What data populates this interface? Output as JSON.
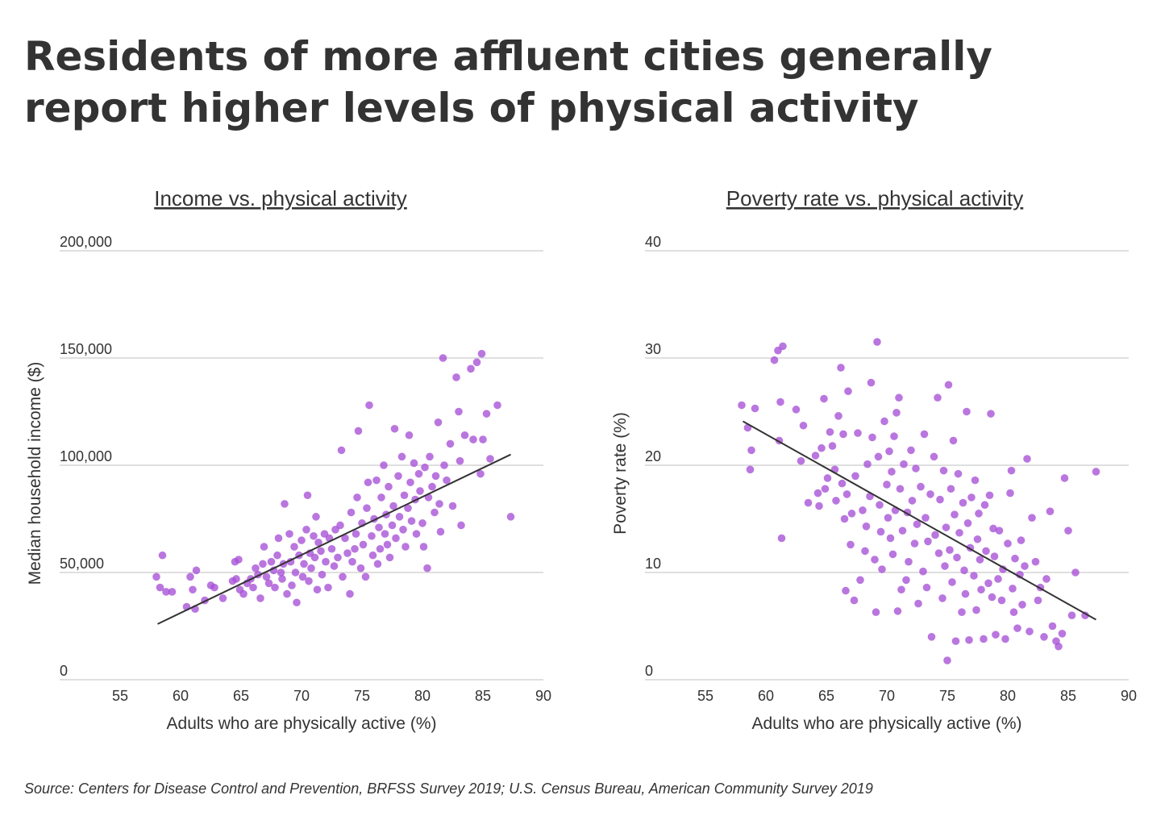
{
  "title": "Residents of more affluent cities generally report higher levels of physical activity",
  "source": "Source: Centers for Disease Control and Prevention, BRFSS Survey 2019; U.S. Census Bureau, American Community Survey 2019",
  "colors": {
    "point": "#A64FD6",
    "trend": "#333333",
    "grid": "#cccccc",
    "text": "#333333"
  },
  "chart_data": [
    {
      "type": "scatter",
      "title": "Income vs. physical activity",
      "xlabel": "Adults who are physically active (%)",
      "ylabel": "Median household income ($)",
      "xlim": [
        50,
        90
      ],
      "ylim": [
        0,
        200000
      ],
      "xticks": [
        55,
        60,
        65,
        70,
        75,
        80,
        85,
        90
      ],
      "yticks": [
        0,
        50000,
        100000,
        150000,
        200000
      ],
      "ytick_labels": [
        "0",
        "50,000",
        "100,000",
        "150,000",
        "200,000"
      ],
      "grid": "horizontal",
      "trendline": [
        [
          58.1,
          26000
        ],
        [
          87.3,
          105000
        ]
      ],
      "points": [
        [
          58.0,
          48000
        ],
        [
          58.3,
          43000
        ],
        [
          58.5,
          58000
        ],
        [
          58.8,
          41000
        ],
        [
          59.3,
          41000
        ],
        [
          60.5,
          34000
        ],
        [
          60.8,
          48000
        ],
        [
          61.0,
          42000
        ],
        [
          61.2,
          33000
        ],
        [
          61.3,
          51000
        ],
        [
          62.0,
          37000
        ],
        [
          62.5,
          44000
        ],
        [
          62.8,
          43000
        ],
        [
          63.5,
          38000
        ],
        [
          64.3,
          46000
        ],
        [
          64.5,
          55000
        ],
        [
          64.6,
          47000
        ],
        [
          64.8,
          56000
        ],
        [
          64.9,
          42000
        ],
        [
          65.2,
          40000
        ],
        [
          65.5,
          45000
        ],
        [
          65.8,
          47000
        ],
        [
          66.0,
          43000
        ],
        [
          66.2,
          52000
        ],
        [
          66.4,
          49000
        ],
        [
          66.6,
          38000
        ],
        [
          66.8,
          54000
        ],
        [
          66.9,
          62000
        ],
        [
          67.1,
          48000
        ],
        [
          67.3,
          45000
        ],
        [
          67.5,
          55000
        ],
        [
          67.7,
          51000
        ],
        [
          67.8,
          43000
        ],
        [
          68.0,
          58000
        ],
        [
          68.1,
          66000
        ],
        [
          68.3,
          50000
        ],
        [
          68.4,
          47000
        ],
        [
          68.5,
          54000
        ],
        [
          68.6,
          82000
        ],
        [
          68.8,
          40000
        ],
        [
          69.0,
          68000
        ],
        [
          69.1,
          55000
        ],
        [
          69.2,
          44000
        ],
        [
          69.4,
          62000
        ],
        [
          69.5,
          50000
        ],
        [
          69.6,
          36000
        ],
        [
          69.8,
          58000
        ],
        [
          70.0,
          65000
        ],
        [
          70.1,
          48000
        ],
        [
          70.2,
          54000
        ],
        [
          70.4,
          70000
        ],
        [
          70.5,
          86000
        ],
        [
          70.6,
          46000
        ],
        [
          70.7,
          59000
        ],
        [
          70.8,
          52000
        ],
        [
          71.0,
          67000
        ],
        [
          71.1,
          57000
        ],
        [
          71.2,
          76000
        ],
        [
          71.3,
          42000
        ],
        [
          71.4,
          64000
        ],
        [
          71.6,
          60000
        ],
        [
          71.7,
          49000
        ],
        [
          71.9,
          68000
        ],
        [
          72.0,
          55000
        ],
        [
          72.2,
          43000
        ],
        [
          72.3,
          66000
        ],
        [
          72.5,
          61000
        ],
        [
          72.7,
          53000
        ],
        [
          72.8,
          70000
        ],
        [
          73.0,
          57000
        ],
        [
          73.2,
          72000
        ],
        [
          73.3,
          107000
        ],
        [
          73.4,
          48000
        ],
        [
          73.6,
          66000
        ],
        [
          73.8,
          59000
        ],
        [
          74.0,
          40000
        ],
        [
          74.1,
          78000
        ],
        [
          74.2,
          55000
        ],
        [
          74.4,
          61000
        ],
        [
          74.5,
          68000
        ],
        [
          74.6,
          85000
        ],
        [
          74.7,
          116000
        ],
        [
          74.9,
          52000
        ],
        [
          75.0,
          73000
        ],
        [
          75.1,
          63000
        ],
        [
          75.3,
          48000
        ],
        [
          75.4,
          80000
        ],
        [
          75.5,
          92000
        ],
        [
          75.6,
          128000
        ],
        [
          75.8,
          67000
        ],
        [
          75.9,
          58000
        ],
        [
          76.0,
          75000
        ],
        [
          76.2,
          93000
        ],
        [
          76.3,
          54000
        ],
        [
          76.4,
          71000
        ],
        [
          76.5,
          61000
        ],
        [
          76.6,
          85000
        ],
        [
          76.8,
          100000
        ],
        [
          76.9,
          68000
        ],
        [
          77.0,
          77000
        ],
        [
          77.1,
          63000
        ],
        [
          77.2,
          90000
        ],
        [
          77.3,
          57000
        ],
        [
          77.5,
          72000
        ],
        [
          77.6,
          81000
        ],
        [
          77.7,
          117000
        ],
        [
          77.8,
          66000
        ],
        [
          78.0,
          95000
        ],
        [
          78.1,
          76000
        ],
        [
          78.3,
          104000
        ],
        [
          78.4,
          70000
        ],
        [
          78.5,
          86000
        ],
        [
          78.6,
          62000
        ],
        [
          78.8,
          80000
        ],
        [
          78.9,
          114000
        ],
        [
          79.0,
          92000
        ],
        [
          79.1,
          74000
        ],
        [
          79.3,
          101000
        ],
        [
          79.4,
          84000
        ],
        [
          79.5,
          68000
        ],
        [
          79.7,
          96000
        ],
        [
          79.8,
          88000
        ],
        [
          80.0,
          73000
        ],
        [
          80.1,
          62000
        ],
        [
          80.2,
          99000
        ],
        [
          80.4,
          52000
        ],
        [
          80.5,
          85000
        ],
        [
          80.6,
          104000
        ],
        [
          80.8,
          90000
        ],
        [
          81.0,
          78000
        ],
        [
          81.1,
          95000
        ],
        [
          81.3,
          120000
        ],
        [
          81.4,
          82000
        ],
        [
          81.5,
          69000
        ],
        [
          81.7,
          150000
        ],
        [
          81.8,
          100000
        ],
        [
          82.0,
          93000
        ],
        [
          82.3,
          110000
        ],
        [
          82.5,
          81000
        ],
        [
          82.8,
          141000
        ],
        [
          83.0,
          125000
        ],
        [
          83.1,
          102000
        ],
        [
          83.2,
          72000
        ],
        [
          83.5,
          114000
        ],
        [
          84.0,
          145000
        ],
        [
          84.2,
          112000
        ],
        [
          84.5,
          148000
        ],
        [
          84.8,
          96000
        ],
        [
          84.9,
          152000
        ],
        [
          85.0,
          112000
        ],
        [
          85.3,
          124000
        ],
        [
          85.6,
          103000
        ],
        [
          86.2,
          128000
        ],
        [
          87.3,
          76000
        ]
      ]
    },
    {
      "type": "scatter",
      "title": "Poverty rate vs. physical activity",
      "xlabel": "Adults who are physically active (%)",
      "ylabel": "Poverty rate (%)",
      "xlim": [
        50,
        90
      ],
      "ylim": [
        0,
        40
      ],
      "xticks": [
        55,
        60,
        65,
        70,
        75,
        80,
        85,
        90
      ],
      "yticks": [
        0,
        10,
        20,
        30,
        40
      ],
      "ytick_labels": [
        "0",
        "10",
        "20",
        "30",
        "40"
      ],
      "grid": "horizontal",
      "trendline": [
        [
          58.1,
          24.1
        ],
        [
          87.3,
          5.6
        ]
      ],
      "points": [
        [
          58.0,
          25.6
        ],
        [
          58.5,
          23.5
        ],
        [
          58.7,
          19.6
        ],
        [
          58.8,
          21.4
        ],
        [
          59.1,
          25.3
        ],
        [
          60.7,
          29.8
        ],
        [
          61.0,
          30.7
        ],
        [
          61.1,
          22.3
        ],
        [
          61.2,
          25.9
        ],
        [
          61.3,
          13.2
        ],
        [
          61.4,
          31.1
        ],
        [
          62.5,
          25.2
        ],
        [
          62.9,
          20.4
        ],
        [
          63.1,
          23.7
        ],
        [
          63.5,
          16.5
        ],
        [
          64.1,
          20.9
        ],
        [
          64.3,
          17.4
        ],
        [
          64.4,
          16.2
        ],
        [
          64.6,
          21.6
        ],
        [
          64.8,
          26.2
        ],
        [
          64.9,
          17.8
        ],
        [
          65.1,
          18.8
        ],
        [
          65.3,
          23.1
        ],
        [
          65.5,
          21.8
        ],
        [
          65.7,
          19.6
        ],
        [
          65.8,
          16.7
        ],
        [
          66.0,
          24.6
        ],
        [
          66.2,
          29.1
        ],
        [
          66.3,
          18.3
        ],
        [
          66.4,
          22.9
        ],
        [
          66.5,
          15.0
        ],
        [
          66.6,
          8.3
        ],
        [
          66.7,
          17.3
        ],
        [
          66.8,
          26.9
        ],
        [
          67.0,
          12.6
        ],
        [
          67.1,
          15.5
        ],
        [
          67.3,
          7.4
        ],
        [
          67.4,
          19.0
        ],
        [
          67.6,
          23.0
        ],
        [
          67.8,
          9.3
        ],
        [
          68.0,
          15.8
        ],
        [
          68.2,
          12.0
        ],
        [
          68.3,
          14.3
        ],
        [
          68.4,
          20.1
        ],
        [
          68.6,
          17.1
        ],
        [
          68.7,
          27.7
        ],
        [
          68.8,
          22.6
        ],
        [
          69.0,
          11.2
        ],
        [
          69.1,
          6.3
        ],
        [
          69.2,
          31.5
        ],
        [
          69.3,
          20.8
        ],
        [
          69.4,
          16.3
        ],
        [
          69.5,
          13.8
        ],
        [
          69.6,
          10.3
        ],
        [
          69.8,
          24.1
        ],
        [
          70.0,
          18.2
        ],
        [
          70.1,
          15.1
        ],
        [
          70.2,
          21.3
        ],
        [
          70.3,
          13.2
        ],
        [
          70.4,
          19.4
        ],
        [
          70.5,
          11.7
        ],
        [
          70.6,
          22.7
        ],
        [
          70.7,
          15.8
        ],
        [
          70.8,
          24.9
        ],
        [
          70.9,
          6.4
        ],
        [
          71.0,
          26.3
        ],
        [
          71.1,
          17.8
        ],
        [
          71.2,
          8.4
        ],
        [
          71.3,
          13.9
        ],
        [
          71.4,
          20.1
        ],
        [
          71.6,
          9.3
        ],
        [
          71.7,
          15.6
        ],
        [
          71.8,
          11.0
        ],
        [
          72.0,
          21.4
        ],
        [
          72.1,
          16.7
        ],
        [
          72.3,
          12.7
        ],
        [
          72.4,
          19.7
        ],
        [
          72.5,
          14.5
        ],
        [
          72.6,
          7.1
        ],
        [
          72.8,
          18.0
        ],
        [
          73.0,
          10.1
        ],
        [
          73.1,
          22.9
        ],
        [
          73.2,
          15.1
        ],
        [
          73.3,
          8.6
        ],
        [
          73.4,
          12.9
        ],
        [
          73.6,
          17.3
        ],
        [
          73.7,
          4.0
        ],
        [
          73.9,
          20.8
        ],
        [
          74.0,
          13.5
        ],
        [
          74.2,
          26.3
        ],
        [
          74.3,
          11.8
        ],
        [
          74.4,
          16.8
        ],
        [
          74.6,
          7.6
        ],
        [
          74.7,
          19.5
        ],
        [
          74.8,
          10.6
        ],
        [
          74.9,
          14.2
        ],
        [
          75.0,
          1.8
        ],
        [
          75.1,
          27.5
        ],
        [
          75.2,
          12.1
        ],
        [
          75.3,
          17.8
        ],
        [
          75.4,
          9.1
        ],
        [
          75.5,
          22.3
        ],
        [
          75.6,
          15.4
        ],
        [
          75.7,
          3.6
        ],
        [
          75.8,
          11.4
        ],
        [
          75.9,
          19.2
        ],
        [
          76.0,
          13.7
        ],
        [
          76.2,
          6.3
        ],
        [
          76.3,
          16.5
        ],
        [
          76.4,
          10.2
        ],
        [
          76.5,
          8.0
        ],
        [
          76.6,
          25.0
        ],
        [
          76.7,
          14.6
        ],
        [
          76.8,
          3.7
        ],
        [
          76.9,
          12.3
        ],
        [
          77.0,
          17.0
        ],
        [
          77.2,
          9.7
        ],
        [
          77.3,
          18.6
        ],
        [
          77.4,
          6.5
        ],
        [
          77.5,
          13.1
        ],
        [
          77.6,
          15.5
        ],
        [
          77.7,
          11.2
        ],
        [
          77.8,
          8.4
        ],
        [
          78.0,
          3.8
        ],
        [
          78.1,
          16.3
        ],
        [
          78.2,
          12.0
        ],
        [
          78.4,
          9.0
        ],
        [
          78.5,
          17.2
        ],
        [
          78.6,
          24.8
        ],
        [
          78.7,
          7.7
        ],
        [
          78.8,
          14.1
        ],
        [
          78.9,
          11.5
        ],
        [
          79.0,
          4.2
        ],
        [
          79.2,
          9.4
        ],
        [
          79.3,
          13.9
        ],
        [
          79.5,
          7.4
        ],
        [
          79.6,
          10.3
        ],
        [
          79.8,
          3.8
        ],
        [
          80.0,
          12.7
        ],
        [
          80.2,
          17.4
        ],
        [
          80.3,
          19.5
        ],
        [
          80.4,
          8.5
        ],
        [
          80.5,
          6.3
        ],
        [
          80.6,
          11.3
        ],
        [
          80.8,
          4.8
        ],
        [
          81.0,
          9.8
        ],
        [
          81.1,
          13.0
        ],
        [
          81.2,
          7.0
        ],
        [
          81.4,
          10.6
        ],
        [
          81.6,
          20.6
        ],
        [
          81.8,
          4.5
        ],
        [
          82.0,
          15.1
        ],
        [
          82.3,
          11.0
        ],
        [
          82.5,
          7.4
        ],
        [
          82.7,
          8.6
        ],
        [
          83.0,
          4.0
        ],
        [
          83.2,
          9.4
        ],
        [
          83.5,
          15.7
        ],
        [
          83.7,
          5.0
        ],
        [
          84.0,
          3.6
        ],
        [
          84.2,
          3.1
        ],
        [
          84.5,
          4.3
        ],
        [
          84.7,
          18.8
        ],
        [
          85.0,
          13.9
        ],
        [
          85.3,
          6.0
        ],
        [
          85.6,
          10.0
        ],
        [
          86.4,
          6.0
        ],
        [
          87.3,
          19.4
        ]
      ]
    }
  ]
}
